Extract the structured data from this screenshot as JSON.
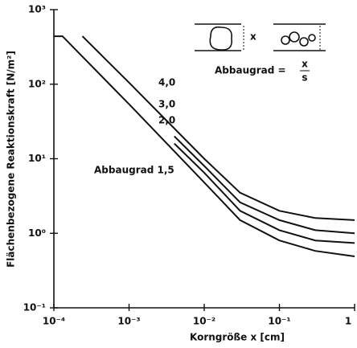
{
  "chart_data": {
    "type": "line",
    "ylabel": "Flächenbezogene Reaktionskraft [N/m²]",
    "xlabel": "Korngröße x [cm]",
    "log_x": true,
    "log_y": true,
    "xlim": [
      0.0001,
      1
    ],
    "ylim": [
      0.1,
      1000
    ],
    "xticks": [
      {
        "value": 0.0001,
        "label": "10⁻⁴"
      },
      {
        "value": 0.001,
        "label": "10⁻³"
      },
      {
        "value": 0.01,
        "label": "10⁻²"
      },
      {
        "value": 0.1,
        "label": "10⁻¹"
      },
      1
    ],
    "yticks": [
      {
        "value": 0.1,
        "label": "10⁻¹"
      },
      {
        "value": 1,
        "label": "10⁰"
      },
      {
        "value": 10,
        "label": "10¹"
      },
      {
        "value": 100,
        "label": "10²"
      },
      {
        "value": 1000,
        "label": "10³"
      }
    ],
    "series": [
      {
        "name": "Abbaugrad 1,5",
        "color": "#111",
        "x": [
          0.0001,
          0.00013,
          0.001,
          0.01,
          0.03,
          0.1,
          0.3,
          1
        ],
        "values": [
          440,
          440,
          54,
          4.8,
          1.5,
          0.8,
          0.58,
          0.49
        ]
      },
      {
        "name": "2,0",
        "color": "#111",
        "x": [
          0.004,
          0.01,
          0.03,
          0.1,
          0.3,
          1
        ],
        "values": [
          16,
          6.5,
          2.0,
          1.1,
          0.8,
          0.74
        ]
      },
      {
        "name": "3,0",
        "color": "#111",
        "x": [
          0.004,
          0.01,
          0.03,
          0.1,
          0.3,
          1
        ],
        "values": [
          20,
          8,
          2.6,
          1.5,
          1.1,
          1.0
        ]
      },
      {
        "name": "4,0",
        "color": "#111",
        "x": [
          0.00024,
          0.001,
          0.01,
          0.03,
          0.1,
          0.3,
          1
        ],
        "values": [
          440,
          105,
          10,
          3.5,
          2.0,
          1.6,
          1.5
        ]
      }
    ],
    "annotations": {
      "formula_label": "Abbaugrad =",
      "numerator": "x",
      "denominator": "s",
      "inset_x": "x"
    }
  }
}
